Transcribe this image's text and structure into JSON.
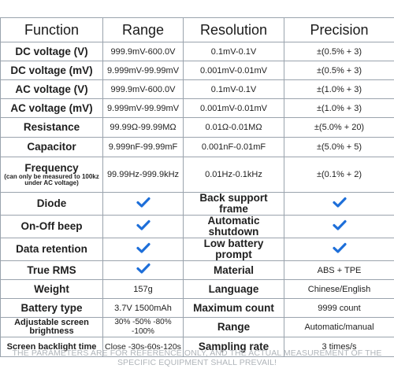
{
  "headers": {
    "function": "Function",
    "range": "Range",
    "resolution": "Resolution",
    "precision": "Precision"
  },
  "measurements": [
    {
      "function": "DC voltage (V)",
      "range": "999.9mV-600.0V",
      "resolution": "0.1mV-0.1V",
      "precision": "±(0.5% + 3)"
    },
    {
      "function": "DC voltage (mV)",
      "range": "9.999mV-99.99mV",
      "resolution": "0.001mV-0.01mV",
      "precision": "±(0.5% + 3)"
    },
    {
      "function": "AC voltage (V)",
      "range": "999.9mV-600.0V",
      "resolution": "0.1mV-0.1V",
      "precision": "±(1.0% + 3)"
    },
    {
      "function": "AC voltage (mV)",
      "range": "9.999mV-99.99mV",
      "resolution": "0.001mV-0.01mV",
      "precision": "±(1.0% + 3)"
    },
    {
      "function": "Resistance",
      "range": "99.99Ω-99.99MΩ",
      "resolution": "0.01Ω-0.01MΩ",
      "precision": "±(5.0% + 20)"
    },
    {
      "function": "Capacitor",
      "range": "9.999nF-99.99mF",
      "resolution": "0.001nF-0.01mF",
      "precision": "±(5.0% + 5)"
    },
    {
      "function": "Frequency",
      "function_note": "(can only be measured to 100kz under AC voltage)",
      "range": "99.99Hz-999.9kHz",
      "resolution": "0.01Hz-0.1kHz",
      "precision": "±(0.1% + 2)"
    }
  ],
  "features": [
    {
      "left_label": "Diode",
      "left_value": "check",
      "right_label": "Back support frame",
      "right_value": "check"
    },
    {
      "left_label": "On-Off beep",
      "left_value": "check",
      "right_label": "Automatic shutdown",
      "right_value": "check"
    },
    {
      "left_label": "Data retention",
      "left_value": "check",
      "right_label": "Low battery prompt",
      "right_value": "check"
    },
    {
      "left_label": "True RMS",
      "left_value": "check",
      "right_label": "Material",
      "right_value": "ABS + TPE"
    },
    {
      "left_label": "Weight",
      "left_value": "157g",
      "right_label": "Language",
      "right_value": "Chinese/English"
    },
    {
      "left_label": "Battery type",
      "left_value": "3.7V 1500mAh",
      "right_label": "Maximum count",
      "right_value": "9999 count"
    },
    {
      "left_label": "Adjustable screen brightness",
      "left_value": "30% -50% -80% -100%",
      "right_label": "Range",
      "right_value": "Automatic/manual"
    },
    {
      "left_label": "Screen backlight time",
      "left_value": "Close -30s-60s-120s",
      "right_label": "Sampling rate",
      "right_value": "3 times/s"
    }
  ],
  "colors": {
    "check": "#1e6fd9",
    "border": "#9aa3ad",
    "note": "#b0b5ba"
  },
  "icons": {
    "check": "checkmark-icon"
  },
  "footnote": "THE PARAMETERS ARE FOR REFERENCE ONLY, AND THE ACTUAL MEASUREMENT OF THE SPECIFIC EQUIPMENT SHALL PREVAIL!"
}
